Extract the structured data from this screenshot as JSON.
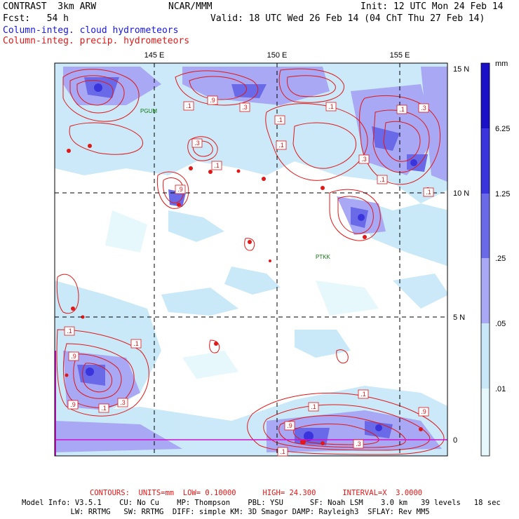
{
  "header": {
    "model": "CONTRAST  3km ARW",
    "org": "NCAR/MMM",
    "init": "Init: 12 UTC Mon 24 Feb 14",
    "forecast": "Fcst:   54 h",
    "valid": "Valid: 18 UTC Wed 26 Feb 14 (04 ChT Thu 27 Feb 14)",
    "field_cloud": "Column-integ. cloud hydrometeors",
    "field_precip": "Column-integ. precip. hydrometeors"
  },
  "map": {
    "lon_labels": [
      "145 E",
      "150 E",
      "155 E"
    ],
    "lat_labels": [
      "15 N",
      "10 N",
      "5 N",
      "0"
    ],
    "stations": [
      "PGUM",
      "PTKK"
    ],
    "contour_labels": [
      ".1",
      ".9",
      ".3",
      ".1",
      ".3",
      ".1",
      ".9",
      ".1",
      ".1",
      ".3",
      ".1",
      ".3",
      ".1",
      ".1",
      ".9",
      ".1",
      ".9",
      ".1",
      ".3",
      ".1",
      ".9",
      ".1",
      ".1",
      ".9",
      ".3",
      ".1"
    ]
  },
  "colorbar": {
    "unit": "mm",
    "tick_labels": [
      "6.25",
      "1.25",
      ".25",
      ".05",
      ".01"
    ],
    "colors": [
      "#1a10c8",
      "#3a34dc",
      "#6a6ae8",
      "#a8a8f4",
      "#c8e8f8",
      "#e6f8fb",
      "#ffffff"
    ]
  },
  "footer": {
    "contours": "CONTOURS:  UNITS=mm  LOW= 0.10000      HIGH= 24.300      INTERVAL=X  3.0000",
    "info1": "Model Info: V3.5.1    CU: No Cu    MP: Thompson    PBL: YSU      SF: Noah LSM    3.0 km   39 levels   18 sec",
    "info2": "           LW: RRTMG   SW: RRTMG  DIFF: simple KM: 3D Smagor DAMP: Rayleigh3  SFLAY: Rev MM5"
  }
}
